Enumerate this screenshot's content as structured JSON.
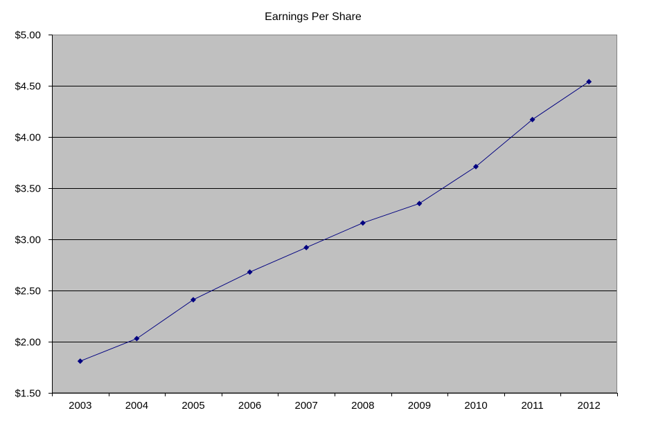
{
  "chart_data": {
    "type": "line",
    "title": "Earnings Per Share",
    "xlabel": "",
    "ylabel": "",
    "categories": [
      "2003",
      "2004",
      "2005",
      "2006",
      "2007",
      "2008",
      "2009",
      "2010",
      "2011",
      "2012"
    ],
    "series": [
      {
        "values": [
          1.81,
          2.03,
          2.41,
          2.68,
          2.92,
          3.16,
          3.35,
          3.71,
          4.17,
          4.54
        ]
      }
    ],
    "ylim": [
      1.5,
      5.0
    ],
    "yticks": [
      1.5,
      2.0,
      2.5,
      3.0,
      3.5,
      4.0,
      4.5,
      5.0
    ],
    "ytick_labels": [
      "$1.50",
      "$2.00",
      "$2.50",
      "$3.00",
      "$3.50",
      "$4.00",
      "$4.50",
      "$5.00"
    ],
    "grid": true,
    "legend": "none",
    "colors": {
      "plot_background": "#c0c0c0",
      "line": "#000080",
      "marker": "#000080",
      "gridline": "#000000"
    }
  }
}
